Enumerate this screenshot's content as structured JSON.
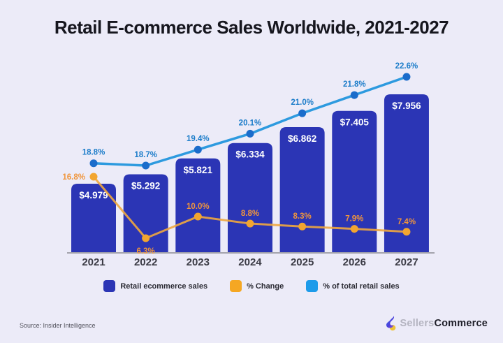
{
  "title": "Retail E-commerce Sales Worldwide, 2021-2027",
  "source": "Source: Insider Intelligence",
  "brand": {
    "name_light": "Sellers",
    "name_bold": "Commerce"
  },
  "colors": {
    "background": "#ECEBF8",
    "bar": "#2B35B5",
    "bar_value_label": "#FFFFFF",
    "pct_change_line": "#EFA73E",
    "pct_change_dot": "#F2A530",
    "pct_change_label": "#F0953C",
    "retail_share_line": "#2D9ADF",
    "retail_share_dot": "#1A6CCB",
    "retail_share_label": "#1B7CC9",
    "axis_line": "#A3A3AC",
    "year_label": "#3B3B45",
    "title_text": "#16161E"
  },
  "legend": [
    {
      "label": "Retail ecommerce sales",
      "color": "#2B35B5"
    },
    {
      "label": "% Change",
      "color": "#F5A723"
    },
    {
      "label": "% of total retail sales",
      "color": "#1D9BEA"
    }
  ],
  "chart_data": {
    "type": "bar",
    "title": "Retail E-commerce Sales Worldwide, 2021-2027",
    "categories": [
      "2021",
      "2022",
      "2023",
      "2024",
      "2025",
      "2026",
      "2027"
    ],
    "series": [
      {
        "name": "Retail ecommerce sales",
        "type": "bar",
        "values": [
          4.979,
          5.292,
          5.821,
          6.334,
          6.862,
          7.405,
          7.956
        ],
        "labels": [
          "$4.979",
          "$5.292",
          "$5.821",
          "$6.334",
          "$6.862",
          "$7.405",
          "$7.956"
        ]
      },
      {
        "name": "% Change",
        "type": "line",
        "values": [
          16.8,
          6.3,
          10.0,
          8.8,
          8.3,
          7.9,
          7.4
        ],
        "labels": [
          "16.8%",
          "6.3%",
          "10.0%",
          "8.8%",
          "8.3%",
          "7.9%",
          "7.4%"
        ],
        "label_placement": [
          "left",
          "below",
          "above",
          "above",
          "above",
          "above",
          "above"
        ]
      },
      {
        "name": "% of total retail sales",
        "type": "line",
        "values": [
          18.8,
          18.7,
          19.4,
          20.1,
          21.0,
          21.8,
          22.6
        ],
        "labels": [
          "18.8%",
          "18.7%",
          "19.4%",
          "20.1%",
          "21.0%",
          "21.8%",
          "22.6%"
        ],
        "label_placement": [
          "above",
          "above",
          "above",
          "above",
          "above",
          "above",
          "above"
        ]
      }
    ],
    "xlabel": "",
    "ylabel": "",
    "grid": false,
    "legend_position": "bottom"
  }
}
